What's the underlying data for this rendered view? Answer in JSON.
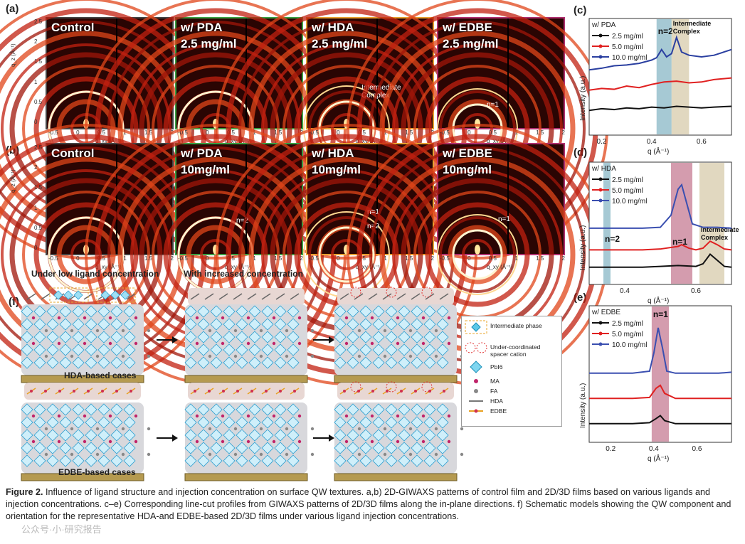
{
  "panels": {
    "a": "(a)",
    "b": "(b)",
    "c": "(c)",
    "d": "(d)",
    "e": "(e)",
    "f": "(f)"
  },
  "giwaxs_row_a": [
    {
      "line1": "Control",
      "line2": ""
    },
    {
      "line1": "w/ PDA",
      "line2": "2.5 mg/ml"
    },
    {
      "line1": "w/ HDA",
      "line2": "2.5 mg/ml",
      "note": "Intermediate Complex"
    },
    {
      "line1": "w/ EDBE",
      "line2": "2.5 mg/ml",
      "note": "n=1"
    }
  ],
  "giwaxs_row_b": [
    {
      "line1": "Control",
      "line2": ""
    },
    {
      "line1": "w/ PDA",
      "line2": "10mg/ml",
      "note": "n=2"
    },
    {
      "line1": "w/ HDA",
      "line2": "10mg/ml",
      "note": "n=1",
      "note2": "n=2"
    },
    {
      "line1": "w/ EDBE",
      "line2": "10mg/ml",
      "note": "n=1"
    }
  ],
  "giwaxs_axes": {
    "ylabel": "q_z (Å⁻¹)",
    "xlabel": "q_xy (Å⁻¹)",
    "yticks": [
      "2.5",
      "2",
      "1.5",
      "1",
      "0.5",
      "0"
    ],
    "xticks_control": [
      "-0.5",
      "0",
      "0.5",
      "1",
      "1.5",
      "2"
    ],
    "xticks_other": [
      "-0.5",
      "0",
      "0.5",
      "1",
      "1.5",
      "2"
    ]
  },
  "row_labels": {
    "low": "Under low ligand concentration",
    "high": "With increased concentration"
  },
  "chart_data": [
    {
      "type": "line",
      "panel": "c",
      "title": "w/ PDA",
      "xlabel": "q (Å⁻¹)",
      "ylabel": "Intensity (a.u.)",
      "xlim": [
        0.15,
        0.72
      ],
      "xticks": [
        "0.2",
        "0.4",
        "0.6"
      ],
      "series": [
        {
          "name": "2.5 mg/ml",
          "color": "#111111",
          "x": [
            0.15,
            0.2,
            0.25,
            0.3,
            0.35,
            0.4,
            0.45,
            0.5,
            0.55,
            0.6,
            0.65,
            0.72
          ],
          "y": [
            0.2,
            0.22,
            0.21,
            0.23,
            0.22,
            0.24,
            0.23,
            0.25,
            0.24,
            0.23,
            0.24,
            0.25
          ]
        },
        {
          "name": "5.0 mg/ml",
          "color": "#e02020",
          "x": [
            0.15,
            0.2,
            0.25,
            0.3,
            0.35,
            0.4,
            0.45,
            0.5,
            0.55,
            0.6,
            0.65,
            0.72
          ],
          "y": [
            0.45,
            0.47,
            0.46,
            0.5,
            0.48,
            0.52,
            0.55,
            0.56,
            0.54,
            0.55,
            0.58,
            0.6
          ]
        },
        {
          "name": "10.0 mg/ml",
          "color": "#2a3fa0",
          "x": [
            0.15,
            0.2,
            0.25,
            0.3,
            0.35,
            0.4,
            0.42,
            0.44,
            0.46,
            0.48,
            0.5,
            0.52,
            0.55,
            0.6,
            0.65,
            0.72
          ],
          "y": [
            0.7,
            0.72,
            0.75,
            0.76,
            0.78,
            0.82,
            0.85,
            0.95,
            0.86,
            0.9,
            1.1,
            0.92,
            0.88,
            0.86,
            0.88,
            0.95
          ]
        }
      ],
      "bands": [
        {
          "label": "n=2",
          "from": 0.42,
          "to": 0.48,
          "color": "#5d9cb0"
        },
        {
          "label": "Intermediate Complex",
          "from": 0.48,
          "to": 0.55,
          "color": "#c9b88c"
        }
      ]
    },
    {
      "type": "line",
      "panel": "d",
      "title": "w/ HDA",
      "xlabel": "q (Å⁻¹)",
      "ylabel": "Intensity (a.u.)",
      "xlim": [
        0.3,
        0.7
      ],
      "xticks": [
        "0.4",
        "0.6"
      ],
      "series": [
        {
          "name": "2.5 mg/ml",
          "color": "#111111",
          "x": [
            0.3,
            0.35,
            0.4,
            0.45,
            0.5,
            0.55,
            0.6,
            0.62,
            0.64,
            0.66,
            0.68,
            0.7
          ],
          "y": [
            0.1,
            0.1,
            0.1,
            0.1,
            0.11,
            0.12,
            0.11,
            0.14,
            0.25,
            0.18,
            0.11,
            0.1
          ]
        },
        {
          "name": "5.0 mg/ml",
          "color": "#e02020",
          "x": [
            0.3,
            0.35,
            0.4,
            0.45,
            0.5,
            0.55,
            0.56,
            0.58,
            0.6,
            0.62,
            0.64,
            0.66,
            0.68,
            0.7
          ],
          "y": [
            0.3,
            0.3,
            0.3,
            0.3,
            0.31,
            0.34,
            0.36,
            0.32,
            0.3,
            0.32,
            0.4,
            0.36,
            0.31,
            0.3
          ]
        },
        {
          "name": "10.0 mg/ml",
          "color": "#3a4fb0",
          "x": [
            0.3,
            0.35,
            0.4,
            0.45,
            0.5,
            0.53,
            0.55,
            0.56,
            0.57,
            0.59,
            0.62,
            0.66,
            0.7
          ],
          "y": [
            0.55,
            0.55,
            0.55,
            0.55,
            0.56,
            0.7,
            1.0,
            1.05,
            0.9,
            0.6,
            0.56,
            0.56,
            0.55
          ]
        }
      ],
      "bands": [
        {
          "label": "n=2",
          "from": 0.34,
          "to": 0.36,
          "color": "#5d9cb0"
        },
        {
          "label": "n=1",
          "from": 0.53,
          "to": 0.59,
          "color": "#b04a6c"
        },
        {
          "label": "Intermediate Complex",
          "from": 0.61,
          "to": 0.68,
          "color": "#c9b88c"
        }
      ]
    },
    {
      "type": "line",
      "panel": "e",
      "title": "w/ EDBE",
      "xlabel": "q (Å⁻¹)",
      "ylabel": "Intensity (a.u.)",
      "xlim": [
        0.1,
        0.76
      ],
      "xticks": [
        "0.2",
        "0.4",
        "0.6"
      ],
      "series": [
        {
          "name": "2.5 mg/ml",
          "color": "#111111",
          "x": [
            0.1,
            0.2,
            0.3,
            0.38,
            0.41,
            0.43,
            0.45,
            0.5,
            0.6,
            0.7,
            0.76
          ],
          "y": [
            0.1,
            0.1,
            0.1,
            0.11,
            0.15,
            0.18,
            0.13,
            0.1,
            0.1,
            0.1,
            0.1
          ]
        },
        {
          "name": "5.0 mg/ml",
          "color": "#e02020",
          "x": [
            0.1,
            0.2,
            0.3,
            0.38,
            0.41,
            0.43,
            0.45,
            0.5,
            0.6,
            0.7,
            0.76
          ],
          "y": [
            0.35,
            0.35,
            0.35,
            0.36,
            0.45,
            0.48,
            0.4,
            0.35,
            0.35,
            0.35,
            0.35
          ]
        },
        {
          "name": "10.0 mg/ml",
          "color": "#3a4fb0",
          "x": [
            0.1,
            0.2,
            0.3,
            0.38,
            0.4,
            0.42,
            0.44,
            0.46,
            0.5,
            0.6,
            0.7,
            0.76
          ],
          "y": [
            0.6,
            0.6,
            0.6,
            0.62,
            0.8,
            1.05,
            0.85,
            0.62,
            0.6,
            0.6,
            0.6,
            0.61
          ]
        }
      ],
      "bands": [
        {
          "label": "n=1",
          "from": 0.39,
          "to": 0.47,
          "color": "#b04a6c"
        }
      ]
    }
  ],
  "schematic": {
    "hda_label": "HDA-based cases",
    "edbe_label": "EDBE-based cases",
    "legend": [
      {
        "icon": "intermediate-phase",
        "label": "Intermediate phase"
      },
      {
        "icon": "undercoordinated",
        "label": "Under-coordinated spacer cation"
      },
      {
        "icon": "pbi6",
        "label": "PbI6"
      },
      {
        "icon": "ma",
        "label": "MA",
        "color": "#c0246a"
      },
      {
        "icon": "fa",
        "label": "FA",
        "color": "#888888"
      },
      {
        "icon": "hda",
        "label": "HDA"
      },
      {
        "icon": "edbe",
        "label": "EDBE"
      }
    ]
  },
  "caption": {
    "label": "Figure 2.",
    "text": "Influence of ligand structure and injection concentration on surface QW textures. a,b) 2D-GIWAXS patterns of control film and 2D/3D films based on various ligands and injection concentrations. c–e) Corresponding line-cut profiles from GIWAXS patterns of 2D/3D films along the in-plane directions. f) Schematic models showing the QW component and orientation for the representative HDA-and EDBE-based 2D/3D films under various ligand injection concentrations.",
    "watermark": "公众号·小·研究报告"
  }
}
